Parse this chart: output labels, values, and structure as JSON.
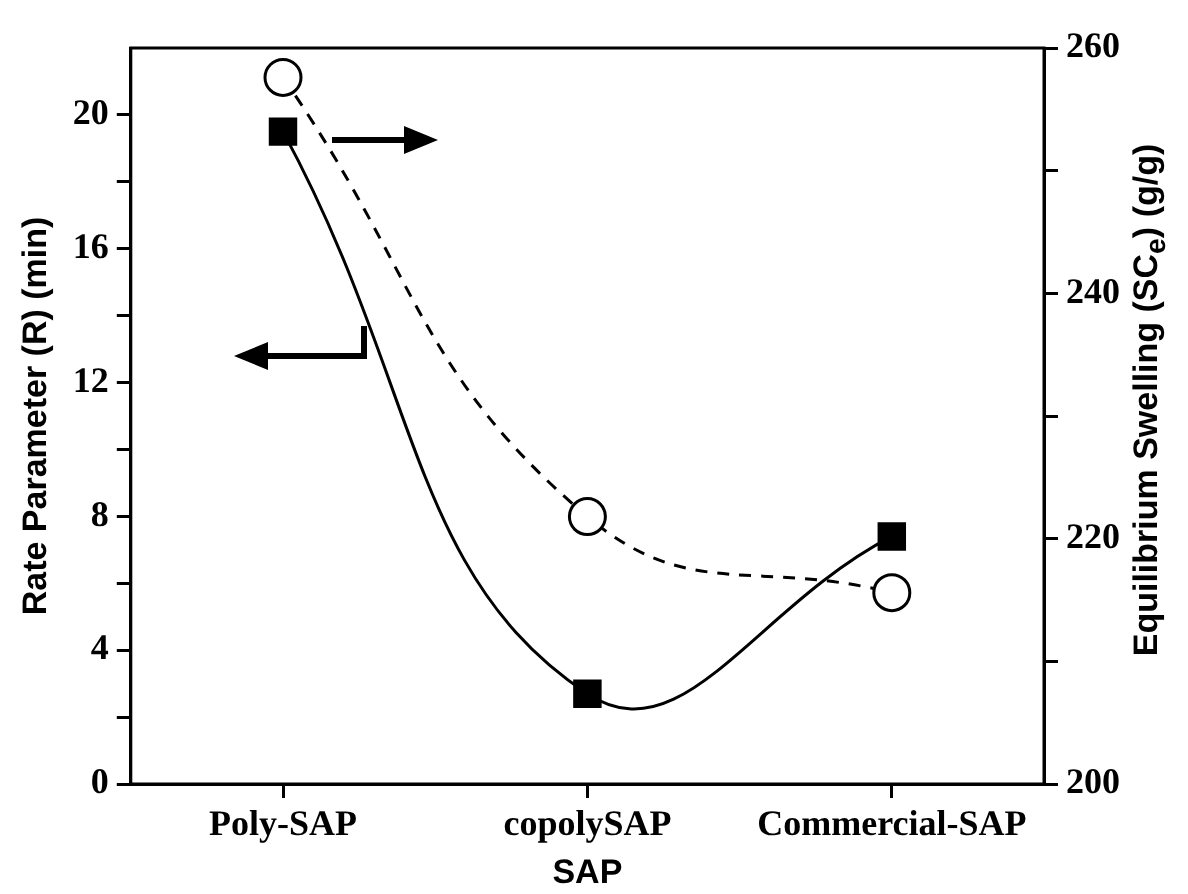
{
  "chart_data": {
    "type": "line",
    "xlabel": "SAP",
    "ylabel": "Rate Parameter (R) (min)",
    "y2label": "Equilibrium Swelling (SC$_{e}$) (g/g)",
    "categories": [
      "Poly-SAP",
      "copolySAP",
      "Commercial-SAP"
    ],
    "series": [
      {
        "color": "#000000",
        "values": [
          19.5,
          2.7,
          7.4
        ],
        "axis": "y",
        "marker": "square",
        "line_style": "solid"
      },
      {
        "color": "#000000",
        "values": [
          257.6,
          221.8,
          215.6
        ],
        "axis": "y2",
        "marker": "circle",
        "line_style": "dashed"
      }
    ],
    "ylim": [
      0,
      22
    ],
    "yticks": [
      0,
      {
        "value": 2,
        "label": null
      },
      4,
      {
        "value": 6,
        "label": null
      },
      8,
      {
        "value": 10,
        "label": null
      },
      12,
      {
        "value": 14,
        "label": null
      },
      16,
      {
        "value": 18,
        "label": null
      },
      20
    ],
    "y2lim": [
      200,
      260
    ],
    "y2ticks": [
      200,
      {
        "value": 210,
        "label": null
      },
      220,
      {
        "value": 230,
        "label": null
      },
      240,
      {
        "value": 250,
        "label": null
      },
      260
    ],
    "grid": false,
    "legend": false
  }
}
